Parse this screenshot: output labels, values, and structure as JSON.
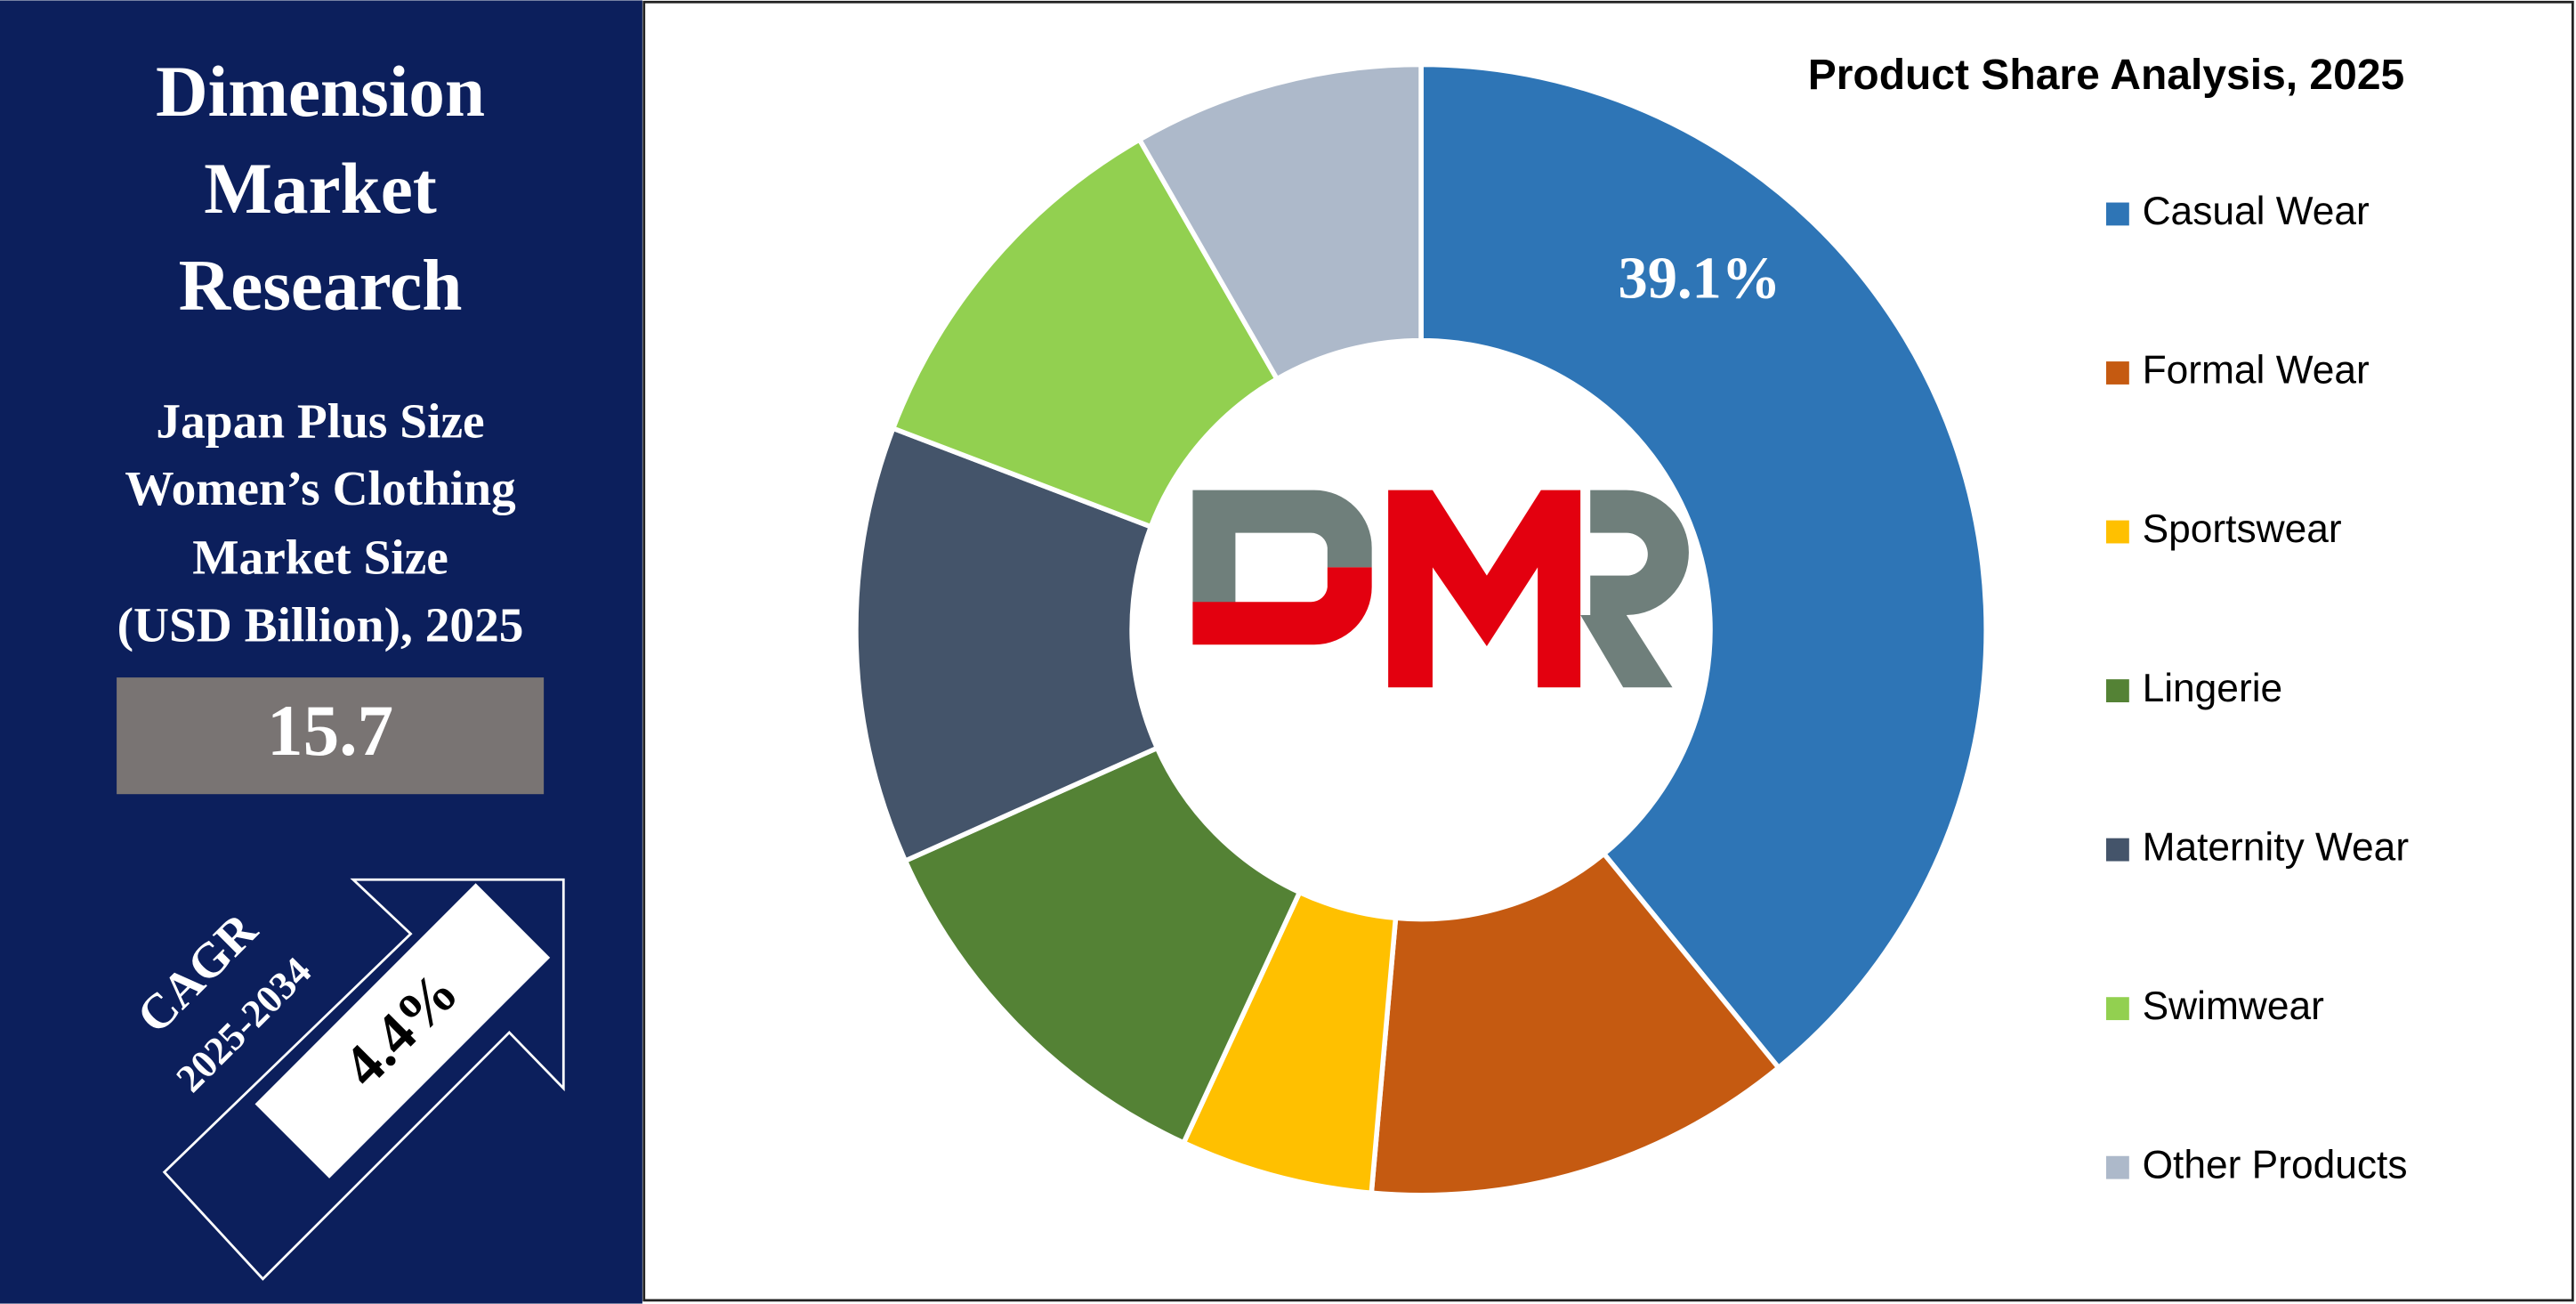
{
  "header": {
    "brand": [
      "Dimension",
      "Market",
      "Research"
    ]
  },
  "market_size": {
    "label": [
      "Japan Plus Size",
      "Women’s Clothing",
      "Market Size",
      "(USD Billion), 2025"
    ],
    "value": "15.7"
  },
  "cagr": {
    "label": "CAGR",
    "period": "2025-2034",
    "value": "4.4%"
  },
  "chart_data": {
    "type": "donut",
    "title": "Product Share Analysis, 2025",
    "categories": [
      "Casual Wear",
      "Formal Wear",
      "Sportswear",
      "Lingerie",
      "Maternity Wear",
      "Swimwear",
      "Other Products"
    ],
    "values": [
      39.1,
      12.3,
      5.5,
      11.4,
      12.5,
      10.9,
      8.3
    ],
    "value_labels": [
      "39.1%",
      null,
      null,
      null,
      null,
      null,
      null
    ],
    "colors": [
      "#2e75b6",
      "#c55a11",
      "#ffc000",
      "#548235",
      "#44546a",
      "#92d050",
      "#adb9ca"
    ],
    "legend": "right"
  }
}
